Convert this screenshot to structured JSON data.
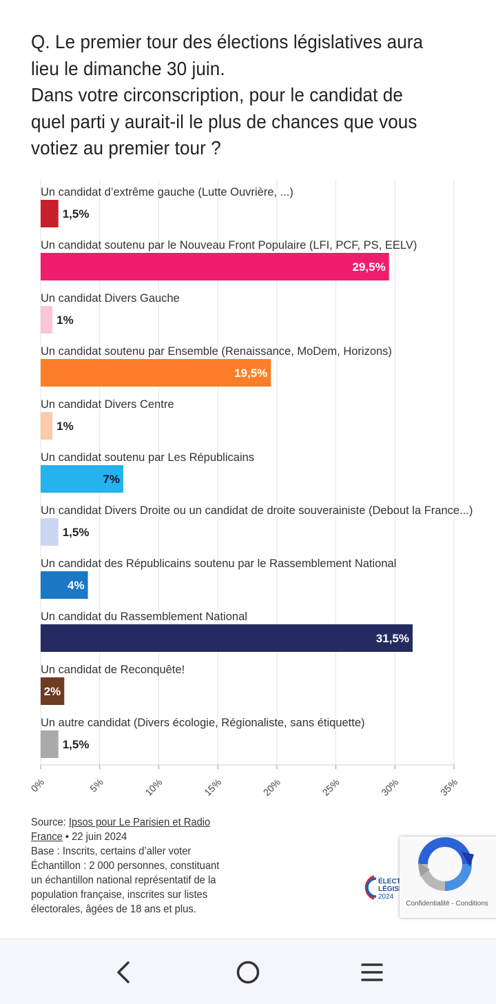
{
  "question": {
    "lines": [
      "Q. Le premier tour des élections législatives aura",
      "lieu le dimanche 30 juin.",
      "Dans votre circonscription, pour le candidat de",
      "quel parti y aurait-il le plus de chances que vous",
      "votiez au premier tour ?"
    ]
  },
  "chart_data": {
    "type": "bar",
    "orientation": "horizontal",
    "title": "Q. Le premier tour des élections législatives aura lieu le dimanche 30 juin. Dans votre circonscription, pour le candidat de quel parti y aurait-il le plus de chances que vous votiez au premier tour ?",
    "categories": [
      "Un candidat d’extrême gauche (Lutte Ouvrière, ...)",
      "Un candidat soutenu par le Nouveau Front Populaire (LFI, PCF, PS, EELV)",
      "Un candidat Divers Gauche",
      "Un candidat soutenu par Ensemble (Renaissance, MoDem, Horizons)",
      "Un candidat Divers Centre",
      "Un candidat soutenu par Les Républicains",
      "Un candidat Divers Droite ou un candidat de droite souverainiste (Debout la France...)",
      "Un candidat des Républicains soutenu par le Rassemblement National",
      "Un candidat du Rassemblement National",
      "Un candidat de Reconquête!",
      "Un autre candidat (Divers écologie, Régionaliste, sans étiquette)"
    ],
    "values": [
      1.5,
      29.5,
      1,
      19.5,
      1,
      7,
      1.5,
      4,
      31.5,
      2,
      1.5
    ],
    "value_labels": [
      "1,5%",
      "29,5%",
      "1%",
      "19,5%",
      "1%",
      "7%",
      "1,5%",
      "4%",
      "31,5%",
      "2%",
      "1,5%"
    ],
    "colors": [
      "#c8202a",
      "#f01d6e",
      "#fcc6d9",
      "#fd7e2a",
      "#fdcba9",
      "#24b3ec",
      "#ccd6f2",
      "#1b78c4",
      "#252b61",
      "#6e3b23",
      "#aaaaaa"
    ],
    "label_inside": [
      false,
      true,
      false,
      true,
      false,
      true,
      false,
      true,
      true,
      true,
      false
    ],
    "label_color": [
      "#222222",
      "#ffffff",
      "#222222",
      "#ffffff",
      "#222222",
      "#10163a",
      "#222222",
      "#ffffff",
      "#ffffff",
      "#ffffff",
      "#222222"
    ],
    "xlim": [
      0,
      35
    ],
    "xticks": [
      0,
      5,
      10,
      15,
      20,
      25,
      30,
      35
    ],
    "xtick_labels": [
      "0%",
      "5%",
      "10%",
      "15%",
      "20%",
      "25%",
      "30%",
      "35%"
    ],
    "xlabel": "",
    "ylabel": "",
    "grid": true
  },
  "source": {
    "prefix": "Source: ",
    "link_line1": "Ipsos pour Le Parisien et Radio",
    "link_line2": "France",
    "date": " • 22 juin 2024",
    "base": "Base : Inscrits, certains d’aller voter",
    "sample": [
      "Échantillon : 2 000 personnes, constituant",
      "un échantillon national représentatif de la",
      "population française, inscrites sur listes",
      "électorales, âgées de 18 ans et plus."
    ]
  },
  "logo": {
    "line1": "ÉLECTIONS",
    "line2": "LÉGISLATIVES",
    "year": "2024"
  },
  "recaptcha": {
    "privacy": "Confidentialité",
    "sep": " - ",
    "terms": "Conditions"
  },
  "navbar": {
    "back": "back-icon",
    "home": "home-icon",
    "menu": "menu-icon"
  }
}
